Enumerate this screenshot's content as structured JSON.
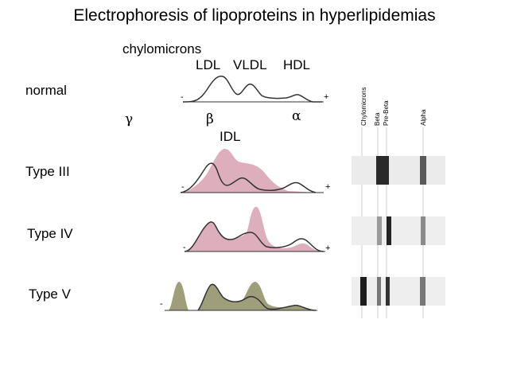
{
  "title": "Electrophoresis of lipoproteins in hyperlipidemias",
  "normal": {
    "label": "normal",
    "chylomicrons": "chylomicrons",
    "ldl": "LDL",
    "vldl": "VLDL",
    "hdl": "HDL",
    "minus": "-",
    "plus": "+"
  },
  "greek": {
    "gamma": "γ",
    "beta": "β",
    "alpha": "α"
  },
  "idl": "IDL",
  "rows": [
    {
      "label": "Type III",
      "minus": "-",
      "plus": "+"
    },
    {
      "label": "Type IV",
      "minus": "-",
      "plus": "+"
    },
    {
      "label": "Type V",
      "minus": "-",
      "plus": "+"
    }
  ],
  "gel_columns": [
    "Chylomicrons",
    "Beta",
    "Pre-Beta",
    "Alpha"
  ],
  "colors": {
    "pink_fill": "#ddaebc",
    "olive_fill": "#9e9e7a",
    "curve": "#333333"
  }
}
